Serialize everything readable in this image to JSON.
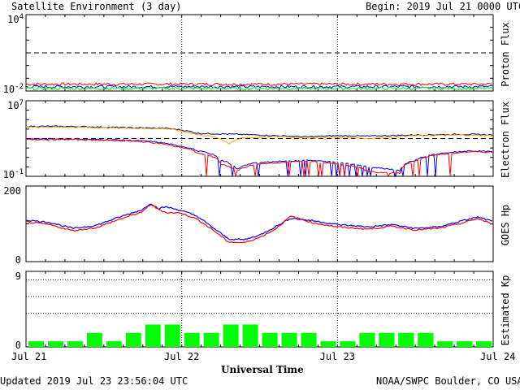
{
  "header": {
    "title": "Satellite Environment (3 day)",
    "begin": "Begin:  2019 Jul 21 0000 UTC"
  },
  "footer": {
    "updated": "Updated 2019 Jul 23 23:56:04 UTC",
    "source": "NOAA/SWPC Boulder, CO USA",
    "xlabel": "Universal Time"
  },
  "x_ticks": [
    "Jul 21",
    "Jul 22",
    "Jul 23",
    "Jul 24"
  ],
  "colors": {
    "red": "#ff0000",
    "blue": "#0000ff",
    "green": "#00ff00",
    "orange": "#ffa500",
    "navy": "#000080",
    "frame": "#000000"
  },
  "chart_data": [
    {
      "type": "line",
      "ylabel": "Proton Flux",
      "yscale": "log",
      "ylim": [
        0.01,
        10000
      ],
      "yticks_major": [
        "10-2",
        "104"
      ],
      "x": {
        "start": "2019-07-21",
        "end": "2019-07-24"
      },
      "series": [
        {
          "color": "red",
          "level": 0.035
        },
        {
          "color": "blue",
          "level": 0.022
        },
        {
          "color": "green",
          "level": 0.016
        }
      ],
      "threshold": 10,
      "grid": "vertical dotted at day boundaries"
    },
    {
      "type": "line",
      "ylabel": "Electron Flux",
      "yscale": "log",
      "ylim": [
        0.1,
        10000000
      ],
      "yticks_major": [
        "10-1",
        "107"
      ],
      "threshold": 1000,
      "series": [
        {
          "color": "navy",
          "points": [
            [
              0,
              20000
            ],
            [
              0.3,
              19000
            ],
            [
              0.6,
              15000
            ],
            [
              0.9,
              12000
            ],
            [
              1.0,
              8000
            ],
            [
              1.1,
              3500
            ],
            [
              1.3,
              3000
            ],
            [
              1.6,
              2000
            ],
            [
              1.8,
              1500
            ],
            [
              2.0,
              2000
            ],
            [
              2.2,
              1800
            ],
            [
              2.5,
              2400
            ],
            [
              2.8,
              2800
            ],
            [
              3.0,
              2500
            ]
          ]
        },
        {
          "color": "orange",
          "points": [
            [
              0,
              17000
            ],
            [
              0.3,
              16000
            ],
            [
              0.6,
              13000
            ],
            [
              0.9,
              11000
            ],
            [
              1.0,
              6000
            ],
            [
              1.1,
              2500
            ],
            [
              1.2,
              1500
            ],
            [
              1.3,
              250
            ],
            [
              1.4,
              1200
            ],
            [
              1.6,
              1600
            ],
            [
              1.8,
              1200
            ],
            [
              2.0,
              1400
            ],
            [
              2.2,
              1000
            ],
            [
              2.5,
              2000
            ],
            [
              2.8,
              2300
            ],
            [
              3.0,
              2000
            ]
          ]
        },
        {
          "color": "blue",
          "points": [
            [
              0,
              900
            ],
            [
              0.3,
              900
            ],
            [
              0.6,
              700
            ],
            [
              0.8,
              500
            ],
            [
              0.95,
              200
            ],
            [
              1.1,
              50
            ],
            [
              1.25,
              5
            ],
            [
              1.35,
              0.5
            ],
            [
              1.5,
              3
            ],
            [
              1.8,
              5
            ],
            [
              2.0,
              3
            ],
            [
              2.2,
              1
            ],
            [
              2.4,
              0.4
            ],
            [
              2.5,
              5
            ],
            [
              2.7,
              30
            ],
            [
              2.85,
              50
            ],
            [
              3.0,
              40
            ]
          ]
        },
        {
          "color": "red",
          "points": [
            [
              0,
              800
            ],
            [
              0.3,
              800
            ],
            [
              0.6,
              600
            ],
            [
              0.8,
              400
            ],
            [
              0.95,
              150
            ],
            [
              1.1,
              30
            ],
            [
              1.25,
              2
            ],
            [
              1.35,
              0.3
            ],
            [
              1.5,
              2
            ],
            [
              1.8,
              4
            ],
            [
              2.0,
              2
            ],
            [
              2.2,
              0.3
            ],
            [
              2.4,
              0.2
            ],
            [
              2.5,
              4
            ],
            [
              2.7,
              25
            ],
            [
              2.85,
              40
            ],
            [
              3.0,
              35
            ]
          ]
        }
      ]
    },
    {
      "type": "line",
      "ylabel": "GOES Hp",
      "yscale": "linear",
      "ylim": [
        0,
        200
      ],
      "yticks": [
        "0",
        "200"
      ],
      "series": [
        {
          "color": "blue",
          "points": [
            [
              0,
              110
            ],
            [
              0.15,
              104
            ],
            [
              0.3,
              88
            ],
            [
              0.45,
              96
            ],
            [
              0.6,
              118
            ],
            [
              0.75,
              138
            ],
            [
              0.8,
              155
            ],
            [
              0.85,
              140
            ],
            [
              0.9,
              145
            ],
            [
              1.0,
              135
            ],
            [
              1.1,
              120
            ],
            [
              1.2,
              90
            ],
            [
              1.3,
              60
            ],
            [
              1.4,
              58
            ],
            [
              1.5,
              70
            ],
            [
              1.6,
              92
            ],
            [
              1.7,
              115
            ],
            [
              1.85,
              108
            ],
            [
              2.0,
              98
            ],
            [
              2.2,
              92
            ],
            [
              2.35,
              98
            ],
            [
              2.5,
              88
            ],
            [
              2.65,
              92
            ],
            [
              2.8,
              108
            ],
            [
              2.9,
              118
            ],
            [
              3.0,
              106
            ]
          ]
        },
        {
          "color": "red",
          "points": [
            [
              0,
              105
            ],
            [
              0.15,
              98
            ],
            [
              0.3,
              82
            ],
            [
              0.45,
              90
            ],
            [
              0.6,
              112
            ],
            [
              0.75,
              132
            ],
            [
              0.8,
              152
            ],
            [
              0.85,
              138
            ],
            [
              0.9,
              130
            ],
            [
              1.0,
              128
            ],
            [
              1.1,
              112
            ],
            [
              1.2,
              84
            ],
            [
              1.3,
              52
            ],
            [
              1.4,
              50
            ],
            [
              1.5,
              64
            ],
            [
              1.6,
              86
            ],
            [
              1.7,
              120
            ],
            [
              1.85,
              102
            ],
            [
              2.0,
              92
            ],
            [
              2.2,
              86
            ],
            [
              2.35,
              94
            ],
            [
              2.5,
              84
            ],
            [
              2.65,
              88
            ],
            [
              2.8,
              102
            ],
            [
              2.9,
              114
            ],
            [
              3.0,
              98
            ]
          ]
        }
      ]
    },
    {
      "type": "bar",
      "ylabel": "Estimated Kp",
      "ylim": [
        0,
        9
      ],
      "yticks": [
        "0",
        "9"
      ],
      "gridlines": [
        4,
        6,
        8
      ],
      "bar_color": "green",
      "values": [
        0.67,
        0.67,
        0.67,
        1.67,
        0.67,
        1.67,
        2.67,
        2.67,
        1.67,
        1.67,
        2.67,
        2.67,
        1.67,
        1.67,
        1.67,
        0.67,
        0.67,
        1.67,
        1.67,
        1.67,
        1.67,
        0.67,
        0.67,
        0.67
      ]
    }
  ]
}
